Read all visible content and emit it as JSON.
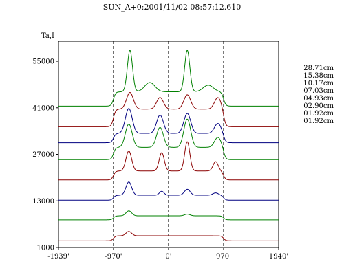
{
  "chart_data": {
    "type": "line",
    "title": "SUN_A+0:2001/11/02 08:57:12.610",
    "ylabel": "Ta,I",
    "xlabel": "",
    "xlim": [
      -1939,
      1940
    ],
    "ylim": [
      -1000,
      61000
    ],
    "x_ticks": [
      {
        "value": -1939,
        "label": "-1939'"
      },
      {
        "value": -970,
        "label": "-970'"
      },
      {
        "value": 0,
        "label": "0'"
      },
      {
        "value": 970,
        "label": "970'"
      },
      {
        "value": 1940,
        "label": "1940'"
      }
    ],
    "y_ticks": [
      {
        "value": 55000,
        "label": "55000"
      },
      {
        "value": 41000,
        "label": "41000"
      },
      {
        "value": 27000,
        "label": "27000"
      },
      {
        "value": 13000,
        "label": "13000"
      },
      {
        "value": -1000,
        "label": "-1000"
      }
    ],
    "dashed_vlines": [
      -970,
      0,
      970
    ],
    "grid": false,
    "legend_position": "right",
    "legend": [
      {
        "label": "28.71cm",
        "color": "#008000"
      },
      {
        "label": "15.38cm",
        "color": "#8b0000"
      },
      {
        "label": "10.17cm",
        "color": "#000080"
      },
      {
        "label": "07.03cm",
        "color": "#008000"
      },
      {
        "label": "04.93cm",
        "color": "#8b0000"
      },
      {
        "label": "02.90cm",
        "color": "#000080"
      },
      {
        "label": "01.92cm",
        "color": "#008000"
      },
      {
        "label": "01.92cm",
        "color": "#8b0000"
      }
    ],
    "series": [
      {
        "color": "#008000",
        "baseline": 41500,
        "disk": 4300,
        "peaks": [
          [
            -680,
            12500,
            45
          ],
          [
            -330,
            2800,
            90
          ],
          [
            330,
            12500,
            45
          ],
          [
            700,
            2000,
            90
          ]
        ]
      },
      {
        "color": "#8b0000",
        "baseline": 35300,
        "disk": 5300,
        "peaks": [
          [
            -680,
            5000,
            60
          ],
          [
            -150,
            3500,
            60
          ],
          [
            330,
            4300,
            60
          ],
          [
            870,
            3500,
            60
          ]
        ]
      },
      {
        "color": "#000080",
        "baseline": 30500,
        "disk": 2800,
        "peaks": [
          [
            -700,
            7500,
            60
          ],
          [
            -150,
            5500,
            60
          ],
          [
            330,
            6000,
            60
          ],
          [
            870,
            3000,
            60
          ]
        ]
      },
      {
        "color": "#008000",
        "baseline": 25400,
        "disk": 3700,
        "peaks": [
          [
            -700,
            7000,
            60
          ],
          [
            -150,
            6000,
            60
          ],
          [
            330,
            8500,
            60
          ],
          [
            870,
            3000,
            60
          ]
        ]
      },
      {
        "color": "#8b0000",
        "baseline": 19300,
        "disk": 2700,
        "peaks": [
          [
            -700,
            6000,
            50
          ],
          [
            -120,
            5500,
            45
          ],
          [
            330,
            8800,
            45
          ],
          [
            830,
            2800,
            45
          ]
        ]
      },
      {
        "color": "#000080",
        "baseline": 13200,
        "disk": 1500,
        "peaks": [
          [
            -700,
            4000,
            50
          ],
          [
            -120,
            1200,
            40
          ],
          [
            330,
            1800,
            50
          ],
          [
            830,
            700,
            50
          ]
        ]
      },
      {
        "color": "#008000",
        "baseline": 7300,
        "disk": 1200,
        "peaks": [
          [
            -700,
            1500,
            50
          ],
          [
            330,
            500,
            50
          ]
        ]
      },
      {
        "color": "#8b0000",
        "baseline": 1000,
        "disk": 1500,
        "peaks": [
          [
            -700,
            1300,
            50
          ]
        ]
      }
    ]
  }
}
